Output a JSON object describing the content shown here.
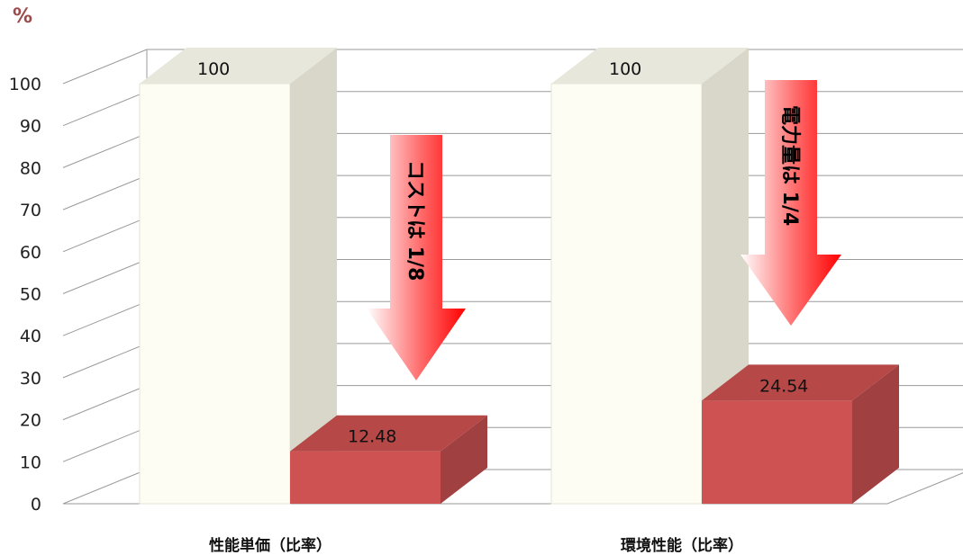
{
  "unit_label": "%",
  "chart_data": {
    "type": "bar",
    "categories": [
      "性能単価（比率）",
      "環境性能（比率）"
    ],
    "series": [
      {
        "values": [
          100,
          100
        ],
        "color": "#fdfdf3"
      },
      {
        "values": [
          12.48,
          24.54
        ],
        "color": "#cf5252"
      }
    ],
    "data_labels": [
      [
        "100",
        "100"
      ],
      [
        "12.48",
        "24.54"
      ]
    ],
    "ylim": [
      0,
      100
    ],
    "yticks": [
      0,
      10,
      20,
      30,
      40,
      50,
      60,
      70,
      80,
      90,
      100
    ],
    "grid": true,
    "legend": "none",
    "annotations": [
      {
        "text": "コストは 1/8",
        "category": "性能単価（比率）",
        "shape": "down-arrow",
        "color": "#ff1a1a"
      },
      {
        "text": "電力量は 1/4",
        "category": "環境性能（比率）",
        "shape": "down-arrow",
        "color": "#ff1a1a"
      }
    ]
  }
}
